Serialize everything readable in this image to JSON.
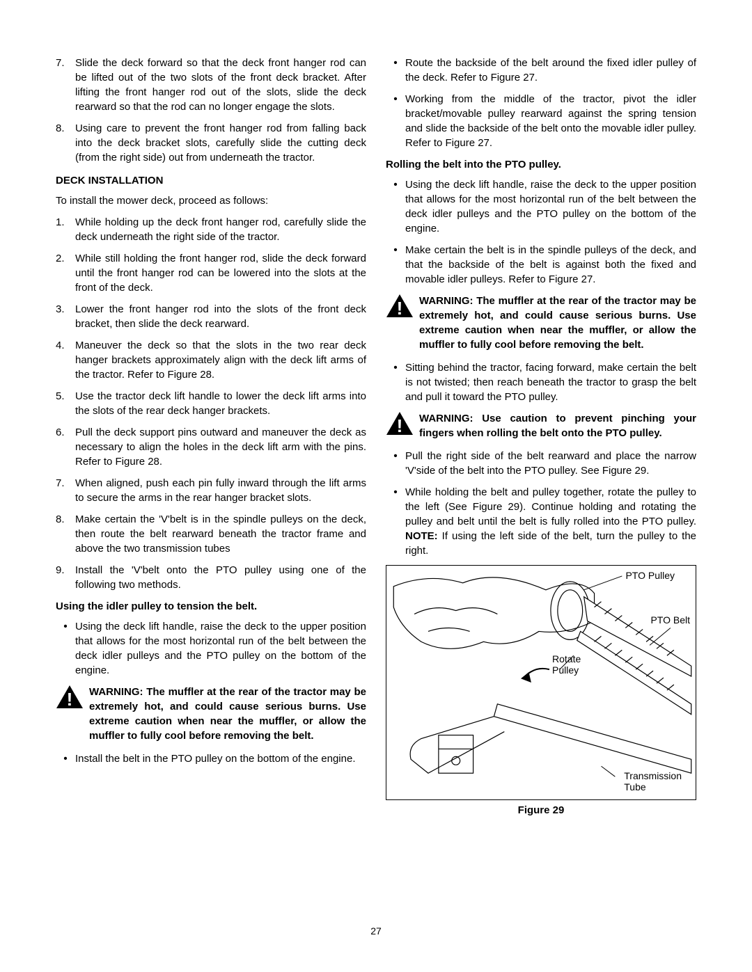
{
  "page_number": "27",
  "left_column": {
    "ol_start": [
      {
        "num": "7.",
        "text": "Slide the deck forward so that the deck front hanger rod can be lifted out of the two slots of the front deck bracket. After lifting the front hanger rod out of the slots, slide the deck rearward so that the rod can no longer engage the slots."
      },
      {
        "num": "8.",
        "text": "Using care to prevent the front hanger rod from falling back into the deck bracket slots, carefully slide the cutting deck (from the right side) out from underneath the tractor."
      }
    ],
    "deck_install_heading": "DECK INSTALLATION",
    "deck_install_intro": "To install the mower deck, proceed as follows:",
    "deck_install_steps": [
      {
        "num": "1.",
        "text": "While holding up the deck front hanger rod, carefully slide the deck underneath the right side of the tractor."
      },
      {
        "num": "2.",
        "text": "While still holding the front hanger rod, slide the deck forward until the front hanger rod can be lowered into the slots at the front of the deck."
      },
      {
        "num": "3.",
        "text": "Lower the front hanger rod into the slots of the front deck bracket, then slide the deck rearward."
      },
      {
        "num": "4.",
        "text": "Maneuver the deck so that the slots in the two rear deck hanger brackets approximately align with the deck lift arms of the tractor. Refer to Figure 28."
      },
      {
        "num": "5.",
        "text": "Use the tractor deck lift handle to lower the deck lift arms into the slots of the rear deck hanger brackets."
      },
      {
        "num": "6.",
        "text": "Pull the deck support pins outward and maneuver the deck as necessary to align the holes in the deck lift arm with the pins. Refer to Figure 28."
      },
      {
        "num": "7.",
        "text": "When aligned, push each pin fully inward through the lift arms to secure the arms in the rear hanger bracket slots."
      },
      {
        "num": "8.",
        "text": "Make certain the 'V'belt is in the spindle pulleys on the deck, then route the belt rearward beneath the tractor frame and above the two transmission tubes"
      },
      {
        "num": "9.",
        "text": "Install the 'V'belt onto the PTO pulley using one of the following two methods."
      }
    ],
    "idler_heading": "Using the idler pulley to tension the belt.",
    "idler_bullets_1": [
      "Using the deck lift handle, raise the deck to the upper position that allows for the most horizontal run of the belt between the deck idler pulleys and the PTO pulley on the bottom of the engine."
    ],
    "warning_1": "WARNING: The muffler at the rear of the tractor may be extremely hot, and could cause serious burns. Use extreme caution when near the muffler, or allow the muffler to fully cool before removing the belt.",
    "idler_bullets_2": [
      "Install the belt in the PTO pulley on the bottom of the engine."
    ]
  },
  "right_column": {
    "top_bullets": [
      "Route the backside of the belt around the fixed idler pulley of the deck. Refer to Figure 27.",
      "Working from the middle of the tractor, pivot the idler bracket/movable pulley rearward against the spring tension and slide the backside of the belt onto the movable idler pulley. Refer to Figure 27."
    ],
    "rolling_heading": "Rolling the belt into the PTO pulley.",
    "rolling_bullets_1": [
      "Using the deck lift handle, raise the deck to the upper position that allows for the most horizontal run of the belt between the deck idler pulleys and the PTO pulley on the bottom of the engine.",
      "Make certain the belt is in the spindle pulleys of the deck, and that the backside of the belt is against both the fixed and movable idler pulleys. Refer to Figure 27."
    ],
    "warning_2": "WARNING: The muffler at the rear of the tractor may be extremely hot, and could cause serious burns. Use extreme caution when near the muffler, or allow the muffler to fully cool before removing the belt.",
    "rolling_bullets_2": [
      "Sitting behind the tractor, facing forward, make certain the belt is not twisted; then reach beneath the tractor to grasp the belt and pull it toward the PTO pulley."
    ],
    "warning_3": "WARNING: Use caution to prevent pinching your fingers when rolling the belt onto the PTO pulley.",
    "rolling_bullets_3": [
      "Pull the right side of the belt rearward and place the narrow 'V'side of the belt into the  PTO pulley. See Figure 29.",
      "While holding the belt and pulley together, rotate the pulley to the left (See Figure 29). Continue holding and rotating the pulley and belt until the belt is fully rolled into the PTO pulley. NOTE: If using the left side of the belt, turn the pulley to the right."
    ],
    "note_word": "NOTE:",
    "figure": {
      "caption": "Figure 29",
      "labels": {
        "pto_pulley": "PTO Pulley",
        "pto_belt": "PTO Belt",
        "rotate_pulley": "Rotate\nPulley",
        "transmission_tube": "Transmission\nTube"
      }
    }
  }
}
